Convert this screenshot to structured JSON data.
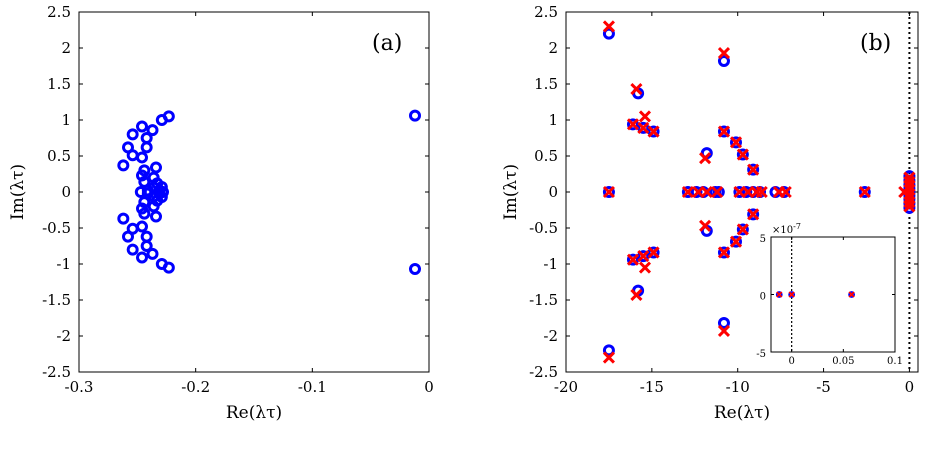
{
  "chart_data": [
    {
      "type": "scatter",
      "panel_label": "(a)",
      "xlabel": "Re(λτ)",
      "ylabel": "Im(λτ)",
      "xlim": [
        -0.3,
        0
      ],
      "ylim": [
        -2.5,
        2.5
      ],
      "xticks": [
        "-0.3",
        "-0.2",
        "-0.1",
        "0"
      ],
      "xtick_values": [
        -0.3,
        -0.2,
        -0.1,
        0
      ],
      "yticks": [
        "-2.5",
        "-2",
        "-1.5",
        "-1",
        "-0.5",
        "0",
        "0.5",
        "1",
        "1.5",
        "2",
        "2.5"
      ],
      "ytick_values": [
        -2.5,
        -2,
        -1.5,
        -1,
        -0.5,
        0,
        0.5,
        1,
        1.5,
        2,
        2.5
      ],
      "grid": false,
      "series": [
        {
          "marker": "circle",
          "color": "#0000ff",
          "points": [
            [
              -0.223,
              1.05
            ],
            [
              -0.229,
              1.0
            ],
            [
              -0.237,
              0.86
            ],
            [
              -0.246,
              0.91
            ],
            [
              -0.254,
              0.8
            ],
            [
              -0.258,
              0.62
            ],
            [
              -0.262,
              0.37
            ],
            [
              -0.254,
              0.51
            ],
            [
              -0.242,
              0.75
            ],
            [
              -0.246,
              0.48
            ],
            [
              -0.242,
              0.62
            ],
            [
              -0.234,
              0.34
            ],
            [
              -0.244,
              0.3
            ],
            [
              -0.246,
              0.23
            ],
            [
              -0.236,
              0.2
            ],
            [
              -0.244,
              0.14
            ],
            [
              -0.233,
              0.12
            ],
            [
              -0.236,
              0.06
            ],
            [
              -0.229,
              0.07
            ],
            [
              -0.228,
              0.0
            ],
            [
              -0.231,
              0.02
            ],
            [
              -0.247,
              0.0
            ],
            [
              -0.241,
              0.02
            ],
            [
              -0.223,
              -1.05
            ],
            [
              -0.229,
              -1.0
            ],
            [
              -0.237,
              -0.86
            ],
            [
              -0.246,
              -0.91
            ],
            [
              -0.254,
              -0.8
            ],
            [
              -0.258,
              -0.62
            ],
            [
              -0.262,
              -0.37
            ],
            [
              -0.254,
              -0.51
            ],
            [
              -0.242,
              -0.75
            ],
            [
              -0.246,
              -0.48
            ],
            [
              -0.242,
              -0.62
            ],
            [
              -0.234,
              -0.34
            ],
            [
              -0.244,
              -0.3
            ],
            [
              -0.246,
              -0.23
            ],
            [
              -0.236,
              -0.2
            ],
            [
              -0.244,
              -0.14
            ],
            [
              -0.233,
              -0.12
            ],
            [
              -0.236,
              -0.06
            ],
            [
              -0.229,
              -0.07
            ],
            [
              -0.231,
              -0.02
            ],
            [
              -0.241,
              -0.02
            ],
            [
              -0.012,
              1.06
            ],
            [
              -0.012,
              -1.07
            ]
          ]
        }
      ]
    },
    {
      "type": "scatter",
      "panel_label": "(b)",
      "xlabel": "Re(λτ)",
      "ylabel": "Im(λτ)",
      "xlim": [
        -20,
        0.5
      ],
      "ylim": [
        -2.5,
        2.5
      ],
      "xticks": [
        "-20",
        "-15",
        "-10",
        "-5",
        "0"
      ],
      "xtick_values": [
        -20,
        -15,
        -10,
        -5,
        0
      ],
      "yticks": [
        "-2.5",
        "-2",
        "-1.5",
        "-1",
        "-0.5",
        "0",
        "0.5",
        "1",
        "1.5",
        "2",
        "2.5"
      ],
      "ytick_values": [
        -2.5,
        -2,
        -1.5,
        -1,
        -0.5,
        0,
        0.5,
        1,
        1.5,
        2,
        2.5
      ],
      "grid": false,
      "vline_x": 0,
      "series": [
        {
          "marker": "circle",
          "color": "#0000ff",
          "points": [
            [
              -17.5,
              2.2
            ],
            [
              -17.5,
              0.0
            ],
            [
              -17.5,
              -2.2
            ],
            [
              -15.8,
              1.37
            ],
            [
              -15.8,
              -1.37
            ],
            [
              -16.1,
              0.94
            ],
            [
              -15.5,
              0.89
            ],
            [
              -14.9,
              0.84
            ],
            [
              -16.1,
              -0.94
            ],
            [
              -15.5,
              -0.89
            ],
            [
              -14.9,
              -0.84
            ],
            [
              -12.9,
              0.0
            ],
            [
              -12.4,
              0.0
            ],
            [
              -12.0,
              0.0
            ],
            [
              -11.3,
              0.0
            ],
            [
              -11.1,
              0.0
            ],
            [
              -11.8,
              0.54
            ],
            [
              -11.8,
              -0.54
            ],
            [
              -10.8,
              1.82
            ],
            [
              -10.8,
              -1.82
            ],
            [
              -10.8,
              0.84
            ],
            [
              -10.8,
              -0.84
            ],
            [
              -10.1,
              0.69
            ],
            [
              -9.7,
              0.52
            ],
            [
              -9.1,
              0.31
            ],
            [
              -10.1,
              -0.69
            ],
            [
              -9.7,
              -0.52
            ],
            [
              -9.1,
              -0.31
            ],
            [
              -9.9,
              0.0
            ],
            [
              -9.5,
              0.0
            ],
            [
              -9.1,
              0.0
            ],
            [
              -8.7,
              0.0
            ],
            [
              -7.8,
              0.0
            ],
            [
              -7.3,
              0.0
            ],
            [
              -2.6,
              0.0
            ],
            [
              0.0,
              0.22
            ],
            [
              0.0,
              0.16
            ],
            [
              0.0,
              0.1
            ],
            [
              0.0,
              0.05
            ],
            [
              0.0,
              0.0
            ],
            [
              0.0,
              -0.05
            ],
            [
              0.0,
              -0.1
            ],
            [
              0.0,
              -0.16
            ],
            [
              0.0,
              -0.22
            ]
          ]
        },
        {
          "marker": "x",
          "color": "#ff0000",
          "points": [
            [
              -17.5,
              2.3
            ],
            [
              -17.5,
              0.0
            ],
            [
              -17.5,
              -2.3
            ],
            [
              -15.9,
              1.43
            ],
            [
              -15.9,
              -1.43
            ],
            [
              -15.4,
              1.05
            ],
            [
              -15.4,
              -1.05
            ],
            [
              -16.1,
              0.94
            ],
            [
              -15.5,
              0.89
            ],
            [
              -14.9,
              0.84
            ],
            [
              -16.1,
              -0.94
            ],
            [
              -15.5,
              -0.89
            ],
            [
              -14.9,
              -0.84
            ],
            [
              -12.9,
              0.0
            ],
            [
              -12.3,
              0.0
            ],
            [
              -11.8,
              0.0
            ],
            [
              -11.2,
              0.0
            ],
            [
              -11.9,
              0.47
            ],
            [
              -11.9,
              -0.47
            ],
            [
              -10.8,
              1.93
            ],
            [
              -10.8,
              -1.93
            ],
            [
              -10.8,
              0.84
            ],
            [
              -10.8,
              -0.84
            ],
            [
              -10.1,
              0.69
            ],
            [
              -9.7,
              0.52
            ],
            [
              -9.1,
              0.31
            ],
            [
              -10.1,
              -0.69
            ],
            [
              -9.7,
              -0.52
            ],
            [
              -9.1,
              -0.31
            ],
            [
              -9.9,
              0.0
            ],
            [
              -9.4,
              0.0
            ],
            [
              -8.9,
              0.0
            ],
            [
              -8.6,
              0.0
            ],
            [
              -7.6,
              0.0
            ],
            [
              -7.2,
              0.0
            ],
            [
              -2.6,
              0.0
            ],
            [
              -0.3,
              0.0
            ],
            [
              0.0,
              0.2
            ],
            [
              0.0,
              0.14
            ],
            [
              0.0,
              0.08
            ],
            [
              0.0,
              0.03
            ],
            [
              0.0,
              -0.03
            ],
            [
              0.0,
              -0.08
            ],
            [
              0.0,
              -0.14
            ],
            [
              0.0,
              -0.2
            ]
          ]
        }
      ],
      "inset": {
        "xlim": [
          -0.02,
          0.1
        ],
        "ylim": [
          -5e-07,
          5e-07
        ],
        "xticks": [
          "0",
          "0.05",
          "0.1"
        ],
        "xtick_values": [
          0,
          0.05,
          0.1
        ],
        "yticks": [
          "-5",
          "0",
          "5"
        ],
        "ytick_values": [
          -5e-07,
          0,
          5e-07
        ],
        "exponent_label": "×10",
        "exponent_power": "-7",
        "vline_x": 0,
        "series": [
          {
            "marker": "circle",
            "color": "#0000ff",
            "points": [
              [
                -0.012,
                0
              ],
              [
                0.0,
                0
              ],
              [
                0.058,
                0
              ]
            ]
          },
          {
            "marker": "x",
            "color": "#ff0000",
            "points": [
              [
                -0.012,
                0
              ],
              [
                0.0,
                0
              ],
              [
                0.058,
                0
              ]
            ]
          }
        ]
      }
    }
  ]
}
